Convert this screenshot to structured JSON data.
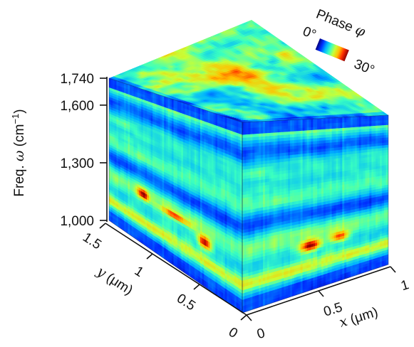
{
  "chart_data": {
    "type": "heatmap",
    "subtype": "3d-data-cube",
    "axes": {
      "frequency": {
        "label": "Freq. ω (cm⁻¹)",
        "label_text": "Freq. ",
        "label_symbol": "ω",
        "label_unit_open": " (cm",
        "label_exp": "−1",
        "label_unit_close": ")",
        "ticks": [
          1000,
          1300,
          1600,
          1740
        ],
        "tick_labels": [
          "1,000",
          "1,300",
          "1,600",
          "1,740"
        ],
        "highlight_tick": "1,740",
        "highlight_color": "#d0021b",
        "range": [
          1000,
          1740
        ]
      },
      "y": {
        "label": "y (μm)",
        "label_symbol": "y",
        "label_unit": " (μm)",
        "ticks": [
          0,
          0.5,
          1,
          1.5
        ],
        "tick_labels": [
          "0",
          "0.5",
          "1",
          "1.5"
        ],
        "range": [
          0,
          1.5
        ]
      },
      "x": {
        "label": "x (μm)",
        "label_symbol": "x",
        "label_unit": " (μm)",
        "ticks": [
          0,
          0.5,
          1
        ],
        "tick_labels": [
          "0",
          "0.5",
          "1"
        ],
        "range": [
          0,
          1
        ]
      }
    },
    "colorbar": {
      "title": "Phase φ",
      "title_text": "Phase ",
      "title_symbol": "φ",
      "min_label": "0°",
      "max_label": "30°",
      "range": [
        0,
        30
      ],
      "colors": [
        "#00007f",
        "#0030ff",
        "#00b4ff",
        "#3affc0",
        "#c6ff38",
        "#ffc000",
        "#ff3000",
        "#8f0000"
      ]
    },
    "faces": {
      "top": {
        "description_free": true,
        "range": [
          0,
          30
        ]
      },
      "left": {
        "range": [
          0,
          30
        ]
      },
      "right": {
        "range": [
          0,
          30
        ]
      }
    },
    "grid": false,
    "legend_position": "top-right"
  }
}
